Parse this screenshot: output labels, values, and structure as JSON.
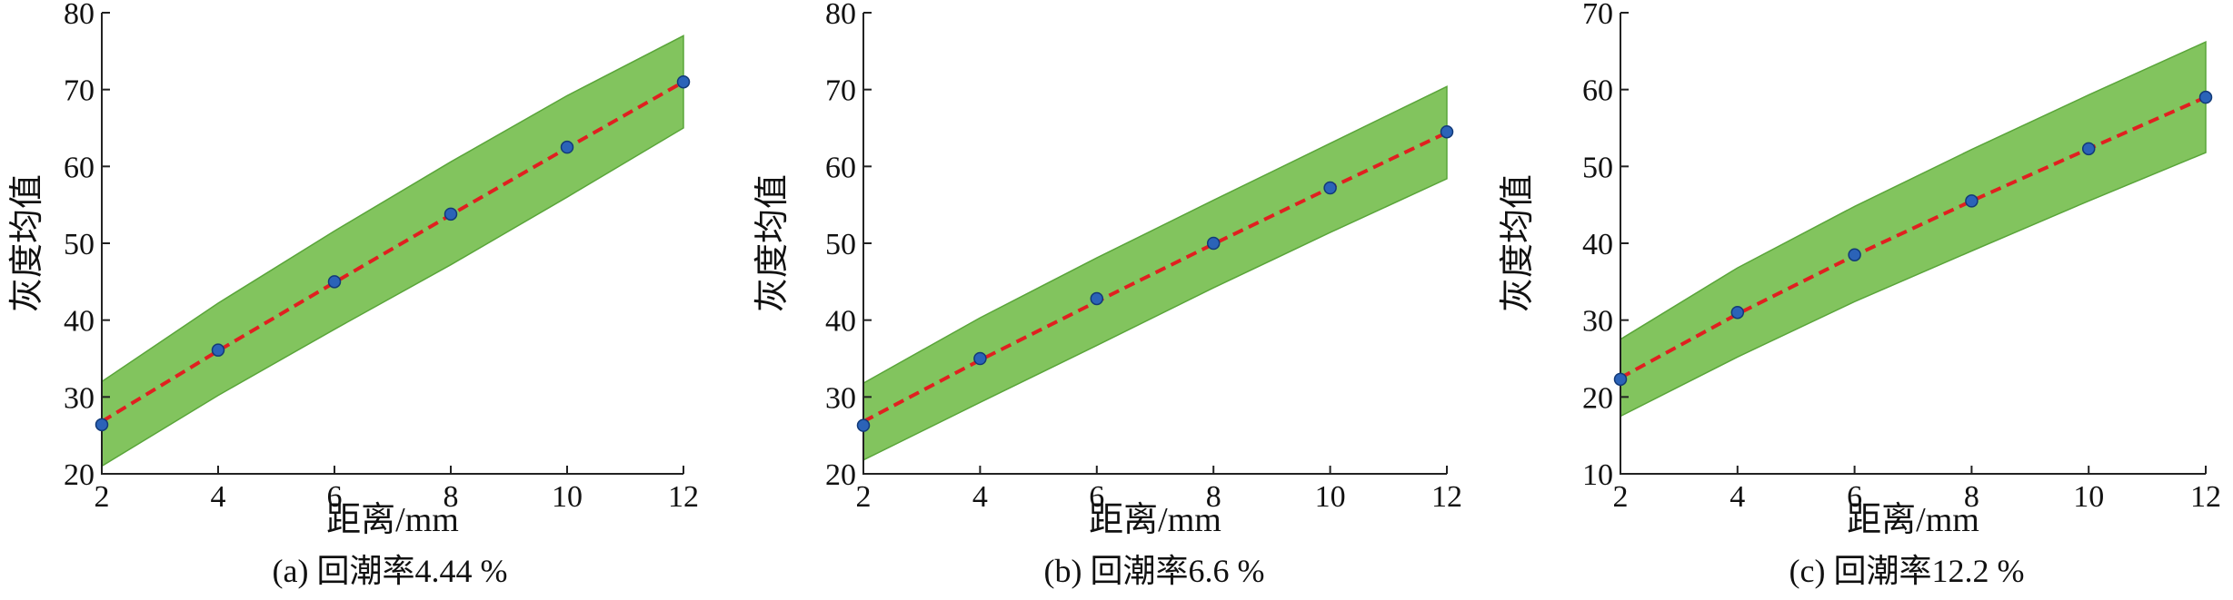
{
  "colors": {
    "band": "#82c45e",
    "band_edge": "#5aa53a",
    "fit_line": "#e02020",
    "point": "#2b63b8",
    "point_edge": "#123a78"
  },
  "chart_data": [
    {
      "type": "line",
      "caption": "(a) 回潮率4.44 %",
      "xlabel": "距离/mm",
      "ylabel": "灰度均值",
      "xlim": [
        2,
        12
      ],
      "ylim": [
        20,
        80
      ],
      "xticks": [
        2,
        4,
        6,
        8,
        10,
        12
      ],
      "yticks": [
        20,
        30,
        40,
        50,
        60,
        70,
        80
      ],
      "points": {
        "x": [
          2,
          4,
          6,
          8,
          10,
          12
        ],
        "y": [
          26.4,
          36.1,
          45.0,
          53.8,
          62.5,
          71.0
        ]
      },
      "band": {
        "x": [
          2,
          4,
          6,
          8,
          10,
          12
        ],
        "upper": [
          32.0,
          42.2,
          51.6,
          60.6,
          69.2,
          77.0
        ],
        "lower": [
          21.0,
          30.2,
          38.8,
          47.2,
          56.0,
          65.0
        ]
      },
      "fit_line": {
        "x": [
          2,
          4,
          6,
          8,
          10,
          12
        ],
        "y": [
          26.8,
          36.0,
          44.9,
          53.7,
          62.4,
          71.0
        ]
      }
    },
    {
      "type": "line",
      "caption": "(b) 回潮率6.6 %",
      "xlabel": "距离/mm",
      "ylabel": "灰度均值",
      "xlim": [
        2,
        12
      ],
      "ylim": [
        20,
        80
      ],
      "xticks": [
        2,
        4,
        6,
        8,
        10,
        12
      ],
      "yticks": [
        20,
        30,
        40,
        50,
        60,
        70,
        80
      ],
      "points": {
        "x": [
          2,
          4,
          6,
          8,
          10,
          12
        ],
        "y": [
          26.3,
          35.0,
          42.8,
          50.0,
          57.2,
          64.5
        ]
      },
      "band": {
        "x": [
          2,
          4,
          6,
          8,
          10,
          12
        ],
        "upper": [
          31.8,
          40.3,
          48.1,
          55.6,
          63.0,
          70.4
        ]
      },
      "fit_line": {
        "x": [
          2,
          4,
          6,
          8,
          10,
          12
        ],
        "y": [
          26.8,
          34.8,
          42.4,
          49.9,
          57.2,
          64.4
        ]
      }
    },
    {
      "type": "line",
      "caption": "(c) 回潮率12.2 %",
      "xlabel": "距离/mm",
      "ylabel": "灰度均值",
      "xlim": [
        2,
        12
      ],
      "ylim": [
        10,
        70
      ],
      "xticks": [
        2,
        4,
        6,
        8,
        10,
        12
      ],
      "yticks": [
        10,
        20,
        30,
        40,
        50,
        60,
        70
      ],
      "points": {
        "x": [
          2,
          4,
          6,
          8,
          10,
          12
        ],
        "y": [
          22.3,
          31.0,
          38.5,
          45.5,
          52.3,
          59.0
        ]
      },
      "band": {
        "x": [
          2,
          4,
          6,
          8,
          10,
          12
        ],
        "upper": [
          27.5,
          36.8,
          44.8,
          52.2,
          59.3,
          66.2
        ],
        "lower": [
          17.5,
          25.2,
          32.4,
          39.0,
          45.5,
          51.8
        ]
      },
      "fit_line": {
        "x": [
          2,
          4,
          6,
          8,
          10,
          12
        ],
        "y": [
          22.5,
          30.8,
          38.4,
          45.5,
          52.3,
          59.0
        ]
      }
    }
  ]
}
